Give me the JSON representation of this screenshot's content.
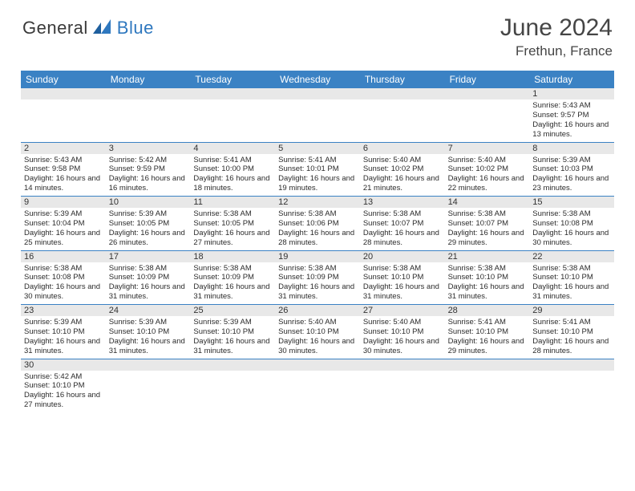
{
  "logo": {
    "a": "General",
    "b": "Blue"
  },
  "title": "June 2024",
  "location": "Frethun, France",
  "colors": {
    "header_bg": "#3b82c4",
    "header_text": "#ffffff",
    "daynum_bg": "#e8e8e8",
    "week_border": "#3b82c4",
    "text": "#333333",
    "logo_gray": "#3a3a3a",
    "logo_blue": "#2f78bf"
  },
  "daynames": [
    "Sunday",
    "Monday",
    "Tuesday",
    "Wednesday",
    "Thursday",
    "Friday",
    "Saturday"
  ],
  "weeks": [
    [
      null,
      null,
      null,
      null,
      null,
      null,
      {
        "n": "1",
        "sunrise": "5:43 AM",
        "sunset": "9:57 PM",
        "daylight": "16 hours and 13 minutes."
      }
    ],
    [
      {
        "n": "2",
        "sunrise": "5:43 AM",
        "sunset": "9:58 PM",
        "daylight": "16 hours and 14 minutes."
      },
      {
        "n": "3",
        "sunrise": "5:42 AM",
        "sunset": "9:59 PM",
        "daylight": "16 hours and 16 minutes."
      },
      {
        "n": "4",
        "sunrise": "5:41 AM",
        "sunset": "10:00 PM",
        "daylight": "16 hours and 18 minutes."
      },
      {
        "n": "5",
        "sunrise": "5:41 AM",
        "sunset": "10:01 PM",
        "daylight": "16 hours and 19 minutes."
      },
      {
        "n": "6",
        "sunrise": "5:40 AM",
        "sunset": "10:02 PM",
        "daylight": "16 hours and 21 minutes."
      },
      {
        "n": "7",
        "sunrise": "5:40 AM",
        "sunset": "10:02 PM",
        "daylight": "16 hours and 22 minutes."
      },
      {
        "n": "8",
        "sunrise": "5:39 AM",
        "sunset": "10:03 PM",
        "daylight": "16 hours and 23 minutes."
      }
    ],
    [
      {
        "n": "9",
        "sunrise": "5:39 AM",
        "sunset": "10:04 PM",
        "daylight": "16 hours and 25 minutes."
      },
      {
        "n": "10",
        "sunrise": "5:39 AM",
        "sunset": "10:05 PM",
        "daylight": "16 hours and 26 minutes."
      },
      {
        "n": "11",
        "sunrise": "5:38 AM",
        "sunset": "10:05 PM",
        "daylight": "16 hours and 27 minutes."
      },
      {
        "n": "12",
        "sunrise": "5:38 AM",
        "sunset": "10:06 PM",
        "daylight": "16 hours and 28 minutes."
      },
      {
        "n": "13",
        "sunrise": "5:38 AM",
        "sunset": "10:07 PM",
        "daylight": "16 hours and 28 minutes."
      },
      {
        "n": "14",
        "sunrise": "5:38 AM",
        "sunset": "10:07 PM",
        "daylight": "16 hours and 29 minutes."
      },
      {
        "n": "15",
        "sunrise": "5:38 AM",
        "sunset": "10:08 PM",
        "daylight": "16 hours and 30 minutes."
      }
    ],
    [
      {
        "n": "16",
        "sunrise": "5:38 AM",
        "sunset": "10:08 PM",
        "daylight": "16 hours and 30 minutes."
      },
      {
        "n": "17",
        "sunrise": "5:38 AM",
        "sunset": "10:09 PM",
        "daylight": "16 hours and 31 minutes."
      },
      {
        "n": "18",
        "sunrise": "5:38 AM",
        "sunset": "10:09 PM",
        "daylight": "16 hours and 31 minutes."
      },
      {
        "n": "19",
        "sunrise": "5:38 AM",
        "sunset": "10:09 PM",
        "daylight": "16 hours and 31 minutes."
      },
      {
        "n": "20",
        "sunrise": "5:38 AM",
        "sunset": "10:10 PM",
        "daylight": "16 hours and 31 minutes."
      },
      {
        "n": "21",
        "sunrise": "5:38 AM",
        "sunset": "10:10 PM",
        "daylight": "16 hours and 31 minutes."
      },
      {
        "n": "22",
        "sunrise": "5:38 AM",
        "sunset": "10:10 PM",
        "daylight": "16 hours and 31 minutes."
      }
    ],
    [
      {
        "n": "23",
        "sunrise": "5:39 AM",
        "sunset": "10:10 PM",
        "daylight": "16 hours and 31 minutes."
      },
      {
        "n": "24",
        "sunrise": "5:39 AM",
        "sunset": "10:10 PM",
        "daylight": "16 hours and 31 minutes."
      },
      {
        "n": "25",
        "sunrise": "5:39 AM",
        "sunset": "10:10 PM",
        "daylight": "16 hours and 31 minutes."
      },
      {
        "n": "26",
        "sunrise": "5:40 AM",
        "sunset": "10:10 PM",
        "daylight": "16 hours and 30 minutes."
      },
      {
        "n": "27",
        "sunrise": "5:40 AM",
        "sunset": "10:10 PM",
        "daylight": "16 hours and 30 minutes."
      },
      {
        "n": "28",
        "sunrise": "5:41 AM",
        "sunset": "10:10 PM",
        "daylight": "16 hours and 29 minutes."
      },
      {
        "n": "29",
        "sunrise": "5:41 AM",
        "sunset": "10:10 PM",
        "daylight": "16 hours and 28 minutes."
      }
    ],
    [
      {
        "n": "30",
        "sunrise": "5:42 AM",
        "sunset": "10:10 PM",
        "daylight": "16 hours and 27 minutes."
      },
      null,
      null,
      null,
      null,
      null,
      null
    ]
  ],
  "labels": {
    "sunrise": "Sunrise: ",
    "sunset": "Sunset: ",
    "daylight": "Daylight: "
  }
}
